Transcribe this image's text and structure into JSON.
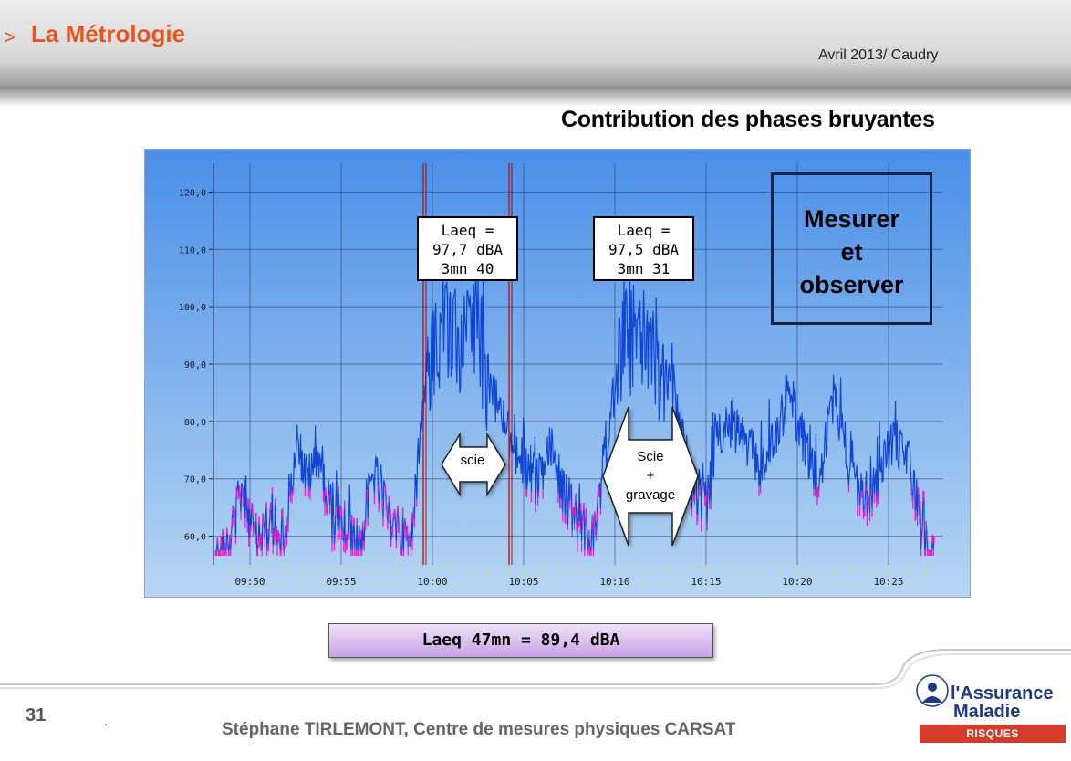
{
  "header": {
    "marker": ">",
    "title": "La Métrologie",
    "date": "Avril 2013/ Caudry"
  },
  "subtitle": "Contribution des phases bruyantes",
  "chart_data": {
    "type": "line",
    "x_ticks": [
      "09:50",
      "09:55",
      "10:00",
      "10:05",
      "10:10",
      "10:15",
      "10:20",
      "10:25"
    ],
    "y_ticks": [
      "60,0",
      "70,0",
      "80,0",
      "90,0",
      "100,0",
      "110,0",
      "120,0"
    ],
    "ylim": [
      55,
      125
    ],
    "x_range_minutes": [
      -2,
      38
    ],
    "grid": true,
    "colors": {
      "background_top": "#4a8fe8",
      "background_bottom": "#b7d6f2",
      "line": "#1046d6",
      "low_segment": "#f01ec8",
      "marker_line": "#cc1111",
      "grid": "#2a3f7a"
    },
    "markers_minutes": [
      9.5,
      14.2
    ],
    "series_envelope": [
      {
        "x": -1.9,
        "y": 61
      },
      {
        "x": -1.2,
        "y": 63
      },
      {
        "x": -0.4,
        "y": 73
      },
      {
        "x": 0.3,
        "y": 64
      },
      {
        "x": 1.0,
        "y": 66
      },
      {
        "x": 1.8,
        "y": 62
      },
      {
        "x": 2.5,
        "y": 81
      },
      {
        "x": 3.2,
        "y": 74
      },
      {
        "x": 3.8,
        "y": 79
      },
      {
        "x": 4.5,
        "y": 68
      },
      {
        "x": 5.2,
        "y": 65
      },
      {
        "x": 6.0,
        "y": 63
      },
      {
        "x": 6.8,
        "y": 76
      },
      {
        "x": 7.5,
        "y": 68
      },
      {
        "x": 8.2,
        "y": 66
      },
      {
        "x": 8.8,
        "y": 63
      },
      {
        "x": 9.6,
        "y": 92
      },
      {
        "x": 10.2,
        "y": 106
      },
      {
        "x": 11.0,
        "y": 104
      },
      {
        "x": 11.8,
        "y": 102
      },
      {
        "x": 12.5,
        "y": 107
      },
      {
        "x": 13.1,
        "y": 92
      },
      {
        "x": 13.7,
        "y": 86
      },
      {
        "x": 14.3,
        "y": 81
      },
      {
        "x": 15.0,
        "y": 77
      },
      {
        "x": 15.7,
        "y": 74
      },
      {
        "x": 16.5,
        "y": 80
      },
      {
        "x": 17.2,
        "y": 72
      },
      {
        "x": 18.0,
        "y": 67
      },
      {
        "x": 18.8,
        "y": 64
      },
      {
        "x": 19.6,
        "y": 78
      },
      {
        "x": 20.4,
        "y": 105
      },
      {
        "x": 21.2,
        "y": 104
      },
      {
        "x": 22.0,
        "y": 103
      },
      {
        "x": 22.8,
        "y": 94
      },
      {
        "x": 23.5,
        "y": 84
      },
      {
        "x": 24.2,
        "y": 74
      },
      {
        "x": 25.0,
        "y": 70
      },
      {
        "x": 25.7,
        "y": 83
      },
      {
        "x": 26.4,
        "y": 84
      },
      {
        "x": 27.2,
        "y": 80
      },
      {
        "x": 28.0,
        "y": 77
      },
      {
        "x": 28.8,
        "y": 82
      },
      {
        "x": 29.6,
        "y": 90
      },
      {
        "x": 30.4,
        "y": 80
      },
      {
        "x": 31.2,
        "y": 74
      },
      {
        "x": 32.0,
        "y": 88
      },
      {
        "x": 32.8,
        "y": 78
      },
      {
        "x": 33.6,
        "y": 71
      },
      {
        "x": 34.4,
        "y": 75
      },
      {
        "x": 35.2,
        "y": 81
      },
      {
        "x": 36.0,
        "y": 79
      },
      {
        "x": 36.8,
        "y": 66
      },
      {
        "x": 37.5,
        "y": 60
      }
    ]
  },
  "annotations": {
    "callout1": [
      "Laeq =",
      "97,7 dBA",
      "3mn 40"
    ],
    "callout2": [
      "Laeq =",
      "97,5 dBA",
      "3mn 31"
    ],
    "mesurer": [
      "Mesurer",
      "et",
      "observer"
    ],
    "arrow1": "scie",
    "arrow2": [
      "Scie",
      "+",
      "gravage"
    ]
  },
  "laeq_total": "Laeq 47mn = 89,4 dBA",
  "footer": {
    "page_number": "31",
    "dot": ".",
    "author": "Stéphane TIRLEMONT, Centre de mesures physiques CARSAT"
  },
  "logo": {
    "name_line1": "l'Assurance",
    "name_line2": "Maladie",
    "subtitle": "RISQUES PROFESSIONNELS"
  }
}
